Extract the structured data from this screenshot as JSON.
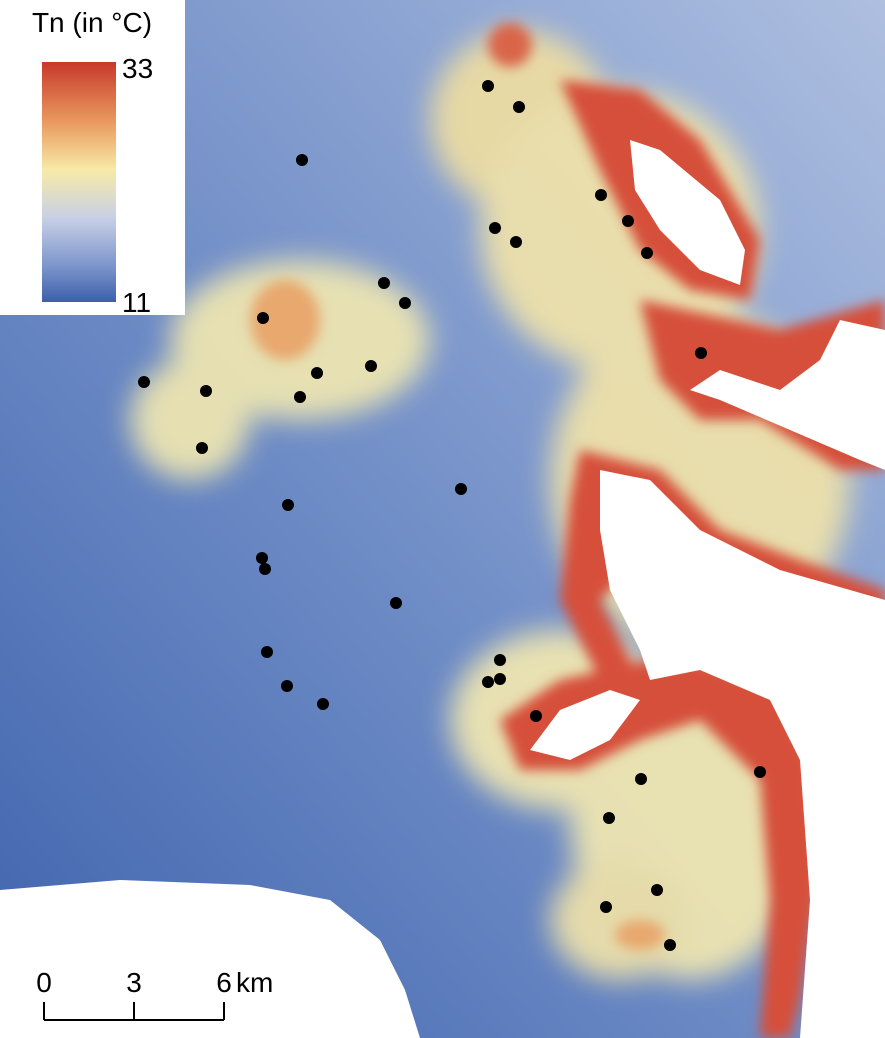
{
  "legend": {
    "title": "Tn (in °C)",
    "max": "33",
    "min": "11"
  },
  "scale_bar": {
    "labels": [
      "0",
      "3",
      "6"
    ],
    "unit": "km"
  }
}
